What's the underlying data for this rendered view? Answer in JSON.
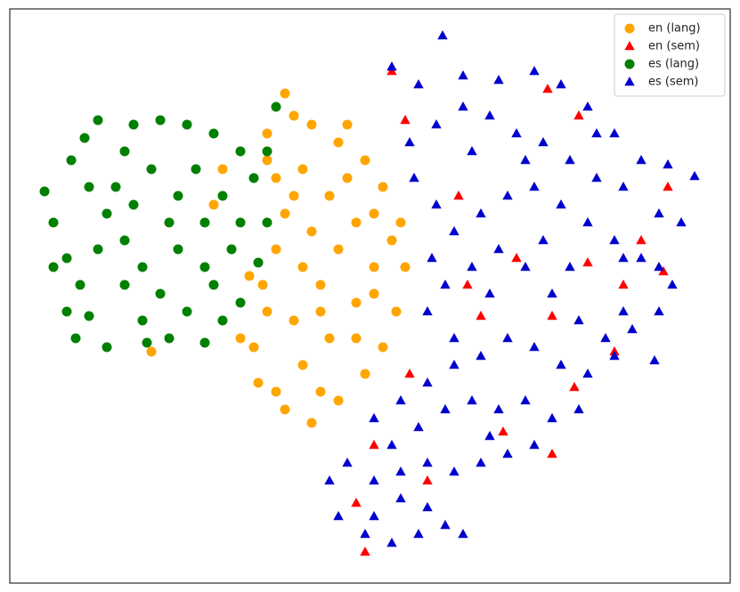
{
  "chart_data": {
    "type": "scatter",
    "xlim": [
      11,
      820
    ],
    "ylim": [
      655,
      10
    ],
    "legend": "upper right",
    "series": [
      {
        "name": "en (lang)",
        "color": "#ffa500",
        "marker": "circle",
        "x": [
          320,
          330,
          300,
          350,
          380,
          410,
          430,
          450,
          455,
          445,
          430,
          410,
          380,
          350,
          320,
          290,
          285,
          300,
          295,
          310,
          320,
          310,
          340,
          370,
          400,
          420,
          400,
          370,
          340,
          330,
          360,
          380,
          350,
          340,
          390,
          420,
          400,
          310,
          360,
          270,
          250,
          240,
          280,
          170,
          390,
          440,
          330,
          360,
          420,
          300
        ],
        "y": [
          105,
          130,
          150,
          140,
          160,
          180,
          210,
          250,
          300,
          350,
          390,
          420,
          450,
          475,
          460,
          430,
          390,
          350,
          320,
          280,
          240,
          200,
          190,
          220,
          250,
          300,
          340,
          380,
          410,
          360,
          320,
          280,
          260,
          300,
          200,
          240,
          380,
          440,
          440,
          380,
          190,
          230,
          310,
          395,
          140,
          270,
          220,
          350,
          330,
          180
        ]
      },
      {
        "name": "en (sem)",
        "color": "#ff0000",
        "marker": "triangle",
        "x": [
          440,
          455,
          515,
          615,
          650,
          720,
          750,
          745,
          540,
          620,
          700,
          460,
          565,
          620,
          420,
          480,
          400,
          410,
          645,
          525,
          690,
          660,
          580
        ],
        "y": [
          80,
          135,
          220,
          100,
          130,
          270,
          210,
          305,
          355,
          355,
          320,
          420,
          485,
          510,
          500,
          540,
          565,
          620,
          435,
          320,
          395,
          295,
          290
        ]
      },
      {
        "name": "es (lang)",
        "color": "#008000",
        "marker": "circle",
        "x": [
          50,
          60,
          75,
          90,
          100,
          85,
          120,
          165,
          190,
          230,
          250,
          270,
          290,
          300,
          285,
          270,
          240,
          210,
          180,
          150,
          110,
          95,
          80,
          100,
          120,
          140,
          160,
          180,
          210,
          240,
          260,
          230,
          200,
          170,
          140,
          130,
          110,
          140,
          200,
          220,
          250,
          60,
          75,
          160,
          300,
          310,
          230,
          190,
          150,
          270
        ],
        "y": [
          215,
          250,
          290,
          320,
          355,
          380,
          390,
          385,
          380,
          385,
          360,
          340,
          295,
          250,
          200,
          170,
          150,
          140,
          135,
          140,
          135,
          155,
          180,
          210,
          240,
          270,
          300,
          330,
          350,
          320,
          280,
          250,
          220,
          190,
          170,
          210,
          280,
          320,
          280,
          190,
          220,
          300,
          350,
          360,
          170,
          120,
          300,
          250,
          230,
          250
        ]
      },
      {
        "name": "es (sem)",
        "color": "#0000cd",
        "marker": "triangle",
        "x": [
          497,
          440,
          470,
          520,
          560,
          600,
          630,
          660,
          690,
          720,
          750,
          780,
          765,
          740,
          700,
          670,
          640,
          610,
          580,
          550,
          520,
          490,
          460,
          465,
          490,
          510,
          540,
          570,
          600,
          630,
          660,
          690,
          720,
          755,
          740,
          710,
          680,
          650,
          620,
          590,
          560,
          530,
          500,
          485,
          480,
          510,
          540,
          570,
          600,
          630,
          660,
          690,
          735,
          700,
          640,
          610,
          550,
          510,
          480,
          450,
          420,
          440,
          470,
          500,
          530,
          560,
          590,
          620,
          650,
          600,
          570,
          540,
          510,
          480,
          450,
          420,
          390,
          370,
          380,
          410,
          440,
          470,
          500,
          520,
          480,
          450,
          420,
          550,
          740,
          700,
          670,
          530,
          590
        ],
        "y": [
          40,
          75,
          95,
          85,
          90,
          80,
          95,
          120,
          150,
          180,
          185,
          198,
          250,
          240,
          210,
          200,
          180,
          160,
          150,
          130,
          120,
          140,
          160,
          200,
          230,
          260,
          240,
          220,
          210,
          230,
          250,
          270,
          290,
          320,
          350,
          370,
          380,
          360,
          330,
          300,
          280,
          300,
          320,
          290,
          350,
          380,
          400,
          380,
          390,
          410,
          420,
          400,
          405,
          350,
          300,
          270,
          330,
          410,
          430,
          450,
          470,
          500,
          480,
          460,
          450,
          460,
          450,
          470,
          460,
          500,
          510,
          520,
          530,
          520,
          530,
          540,
          520,
          540,
          580,
          600,
          610,
          600,
          590,
          600,
          570,
          560,
          580,
          490,
          300,
          290,
          150,
          170,
          180
        ]
      }
    ]
  }
}
